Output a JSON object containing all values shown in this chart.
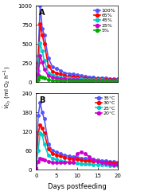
{
  "panel_A": {
    "label": "A",
    "ylim": [
      0,
      1000
    ],
    "yticks": [
      0,
      250,
      500,
      750,
      1000
    ],
    "series": [
      {
        "name": "100%",
        "color": "#5555ff",
        "x": [
          0,
          0.5,
          1,
          1.5,
          2,
          3,
          4,
          5,
          6,
          7,
          8,
          9,
          10,
          11,
          12,
          13,
          14,
          15,
          16,
          17,
          18,
          19,
          20
        ],
        "y": [
          20,
          350,
          1000,
          700,
          620,
          310,
          200,
          175,
          150,
          120,
          110,
          100,
          90,
          85,
          75,
          65,
          60,
          55,
          50,
          50,
          45,
          45,
          40
        ]
      },
      {
        "name": "65%",
        "color": "#ff0000",
        "x": [
          0,
          0.5,
          1,
          1.5,
          2,
          3,
          4,
          5,
          6,
          7,
          8,
          9,
          10,
          11,
          12,
          13,
          14,
          15,
          16,
          17,
          18,
          19,
          20
        ],
        "y": [
          20,
          250,
          760,
          620,
          500,
          210,
          140,
          120,
          100,
          85,
          75,
          70,
          60,
          55,
          50,
          45,
          42,
          40,
          38,
          35,
          33,
          32,
          30
        ]
      },
      {
        "name": "45%",
        "color": "#00cccc",
        "x": [
          0,
          0.5,
          1,
          1.5,
          2,
          3,
          4,
          5,
          6,
          7,
          8,
          9,
          10,
          11,
          12,
          13,
          14,
          15,
          16,
          17,
          18,
          19,
          20
        ],
        "y": [
          15,
          150,
          510,
          410,
          280,
          120,
          90,
          75,
          65,
          55,
          50,
          45,
          40,
          38,
          35,
          32,
          30,
          28,
          27,
          26,
          25,
          24,
          23
        ]
      },
      {
        "name": "25%",
        "color": "#cc00cc",
        "x": [
          0,
          0.5,
          1,
          1.5,
          2,
          3,
          4,
          5,
          6,
          7,
          8,
          9,
          10,
          11,
          12,
          13,
          14,
          15,
          16,
          17,
          18,
          19,
          20
        ],
        "y": [
          10,
          90,
          350,
          260,
          170,
          80,
          60,
          50,
          45,
          38,
          34,
          30,
          28,
          26,
          24,
          22,
          21,
          20,
          19,
          18,
          17,
          17,
          16
        ]
      },
      {
        "name": "5%",
        "color": "#00aa00",
        "x": [
          0,
          0.5,
          1,
          1.5,
          2,
          3,
          4,
          5,
          6,
          7,
          8,
          9,
          10,
          11,
          12,
          13,
          14,
          15,
          16,
          17,
          18,
          19,
          20
        ],
        "y": [
          5,
          30,
          70,
          65,
          50,
          30,
          22,
          18,
          16,
          14,
          13,
          12,
          11,
          10,
          10,
          9,
          9,
          8,
          8,
          8,
          7,
          7,
          7
        ]
      }
    ]
  },
  "panel_B": {
    "label": "B",
    "ylim": [
      0,
      240
    ],
    "yticks": [
      0,
      60,
      120,
      180,
      240
    ],
    "series": [
      {
        "name": "35°C",
        "color": "#5555ff",
        "x": [
          0,
          0.5,
          1,
          1.5,
          2,
          3,
          4,
          5,
          6,
          7,
          8,
          9,
          10,
          11,
          12,
          13,
          14,
          15,
          16,
          17,
          18,
          19,
          20
        ],
        "y": [
          5,
          170,
          210,
          180,
          160,
          80,
          60,
          55,
          50,
          45,
          42,
          40,
          38,
          36,
          35,
          33,
          32,
          30,
          28,
          27,
          26,
          25,
          24
        ]
      },
      {
        "name": "30°C",
        "color": "#ff0000",
        "x": [
          0,
          0.5,
          1,
          1.5,
          2,
          3,
          4,
          5,
          6,
          7,
          8,
          9,
          10,
          11,
          12,
          13,
          14,
          15,
          16,
          17,
          18,
          19,
          20
        ],
        "y": [
          5,
          115,
          140,
          130,
          115,
          65,
          50,
          46,
          42,
          38,
          36,
          34,
          32,
          30,
          28,
          27,
          26,
          25,
          24,
          23,
          22,
          21,
          20
        ]
      },
      {
        "name": "25°C",
        "color": "#00cccc",
        "x": [
          0,
          0.5,
          1,
          1.5,
          2,
          3,
          4,
          5,
          6,
          7,
          8,
          9,
          10,
          11,
          12,
          13,
          14,
          15,
          16,
          17,
          18,
          19,
          20
        ],
        "y": [
          5,
          60,
          115,
          110,
          80,
          45,
          35,
          32,
          28,
          26,
          24,
          22,
          20,
          19,
          18,
          17,
          16,
          16,
          15,
          15,
          14,
          14,
          13
        ]
      },
      {
        "name": "20°C",
        "color": "#cc00cc",
        "x": [
          0,
          0.5,
          1,
          1.5,
          2,
          3,
          4,
          5,
          6,
          7,
          8,
          9,
          10,
          11,
          12,
          13,
          14,
          15,
          16,
          17,
          18,
          19,
          20
        ],
        "y": [
          5,
          25,
          35,
          33,
          30,
          26,
          24,
          22,
          22,
          22,
          23,
          24,
          50,
          55,
          50,
          40,
          30,
          25,
          22,
          20,
          18,
          16,
          15
        ]
      }
    ]
  },
  "ylabel": "$\\dot{V}_{\\mathrm{O_2}}$ (ml O$_2$ h$^{-1}$)",
  "xlabel": "Days postfeeding",
  "bg_color": "#ffffff",
  "marker": "o",
  "markersize": 3,
  "linewidth": 1.2
}
